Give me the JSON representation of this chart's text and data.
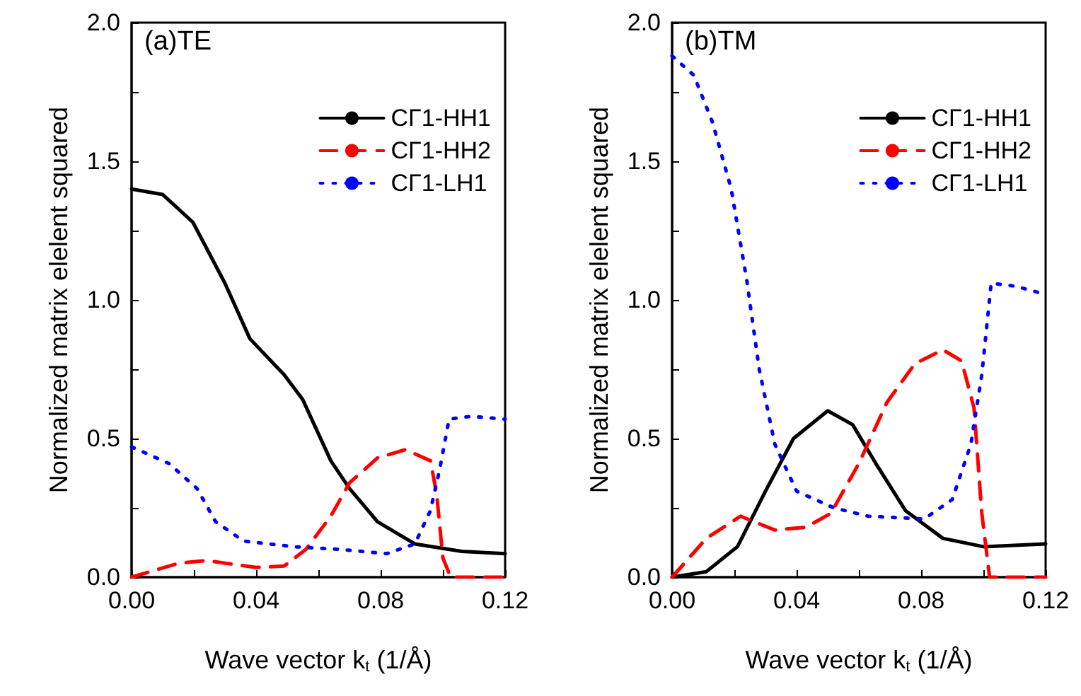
{
  "chart_data": [
    {
      "type": "line",
      "annotations": [
        "(a)TE"
      ],
      "xlabel": "Wave vector k$_{t}$ (1/Å)",
      "ylabel": "Normalized matrix elelent squared",
      "xlim": [
        0,
        0.12
      ],
      "xticks": [
        {
          "value": 0,
          "label": "0.00"
        },
        {
          "value": 0.02,
          "label": null
        },
        {
          "value": 0.04,
          "label": "0.04"
        },
        {
          "value": 0.06,
          "label": null
        },
        {
          "value": 0.08,
          "label": "0.08"
        },
        {
          "value": 0.1,
          "label": null
        },
        {
          "value": 0.12,
          "label": "0.12"
        }
      ],
      "ylim": [
        0,
        2
      ],
      "yticks": [
        {
          "value": 0,
          "label": "0.0"
        },
        {
          "value": 0.25,
          "label": null
        },
        {
          "value": 0.5,
          "label": "0.5"
        },
        {
          "value": 0.75,
          "label": null
        },
        {
          "value": 1,
          "label": "1.0"
        },
        {
          "value": 1.25,
          "label": null
        },
        {
          "value": 1.5,
          "label": "1.5"
        },
        {
          "value": 1.75,
          "label": null
        },
        {
          "value": 2,
          "label": "2.0"
        }
      ],
      "legend": "top right",
      "grid": false,
      "marker": "none",
      "series": [
        {
          "name": "CΓ1-HH1",
          "color": "#000000",
          "line_style": "solid",
          "x": [
            0,
            0.01,
            0.0197,
            0.03,
            0.038,
            0.049,
            0.055,
            0.064,
            0.07,
            0.079,
            0.091,
            0.106,
            0.12
          ],
          "values": [
            1.4,
            1.38,
            1.28,
            1.06,
            0.86,
            0.73,
            0.64,
            0.42,
            0.32,
            0.2,
            0.12,
            0.093,
            0.085
          ]
        },
        {
          "name": "CΓ1-HH2",
          "color": "#ff0000",
          "line_style": "dashed",
          "x": [
            0,
            0.015,
            0.024,
            0.04,
            0.049,
            0.056,
            0.064,
            0.07,
            0.079,
            0.088,
            0.096,
            0.098,
            0.1,
            0.1025,
            0.12
          ],
          "values": [
            0,
            0.05,
            0.06,
            0.035,
            0.04,
            0.1,
            0.22,
            0.34,
            0.43,
            0.46,
            0.42,
            0.3,
            0.07,
            0,
            0
          ]
        },
        {
          "name": "CΓ1-LH1",
          "color": "#0000ff",
          "line_style": "dotted",
          "x": [
            0,
            0.012,
            0.021,
            0.027,
            0.036,
            0.052,
            0.067,
            0.082,
            0.091,
            0.096,
            0.099,
            0.102,
            0.109,
            0.12
          ],
          "values": [
            0.47,
            0.41,
            0.32,
            0.2,
            0.13,
            0.11,
            0.1,
            0.085,
            0.12,
            0.24,
            0.39,
            0.57,
            0.58,
            0.57
          ]
        }
      ]
    },
    {
      "type": "line",
      "annotations": [
        "(b)TM"
      ],
      "xlabel": "Wave vector k$_{t}$ (1/Å)",
      "ylabel": "Normalized matrix elelent squared",
      "xlim": [
        0,
        0.12
      ],
      "xticks": [
        {
          "value": 0,
          "label": "0.00"
        },
        {
          "value": 0.02,
          "label": null
        },
        {
          "value": 0.04,
          "label": "0.04"
        },
        {
          "value": 0.06,
          "label": null
        },
        {
          "value": 0.08,
          "label": "0.08"
        },
        {
          "value": 0.1,
          "label": null
        },
        {
          "value": 0.12,
          "label": "0.12"
        }
      ],
      "ylim": [
        0,
        2
      ],
      "yticks": [
        {
          "value": 0,
          "label": "0.0"
        },
        {
          "value": 0.25,
          "label": null
        },
        {
          "value": 0.5,
          "label": "0.5"
        },
        {
          "value": 0.75,
          "label": null
        },
        {
          "value": 1,
          "label": "1.0"
        },
        {
          "value": 1.25,
          "label": null
        },
        {
          "value": 1.5,
          "label": "1.5"
        },
        {
          "value": 1.75,
          "label": null
        },
        {
          "value": 2,
          "label": "2.0"
        }
      ],
      "legend": "top right",
      "grid": false,
      "marker": "none",
      "series": [
        {
          "name": "CΓ1-HH1",
          "color": "#000000",
          "line_style": "solid",
          "x": [
            0,
            0.011,
            0.021,
            0.03,
            0.039,
            0.05,
            0.058,
            0.066,
            0.075,
            0.087,
            0.1,
            0.12
          ],
          "values": [
            0,
            0.02,
            0.11,
            0.31,
            0.5,
            0.6,
            0.55,
            0.4,
            0.24,
            0.14,
            0.11,
            0.12
          ]
        },
        {
          "name": "CΓ1-HH2",
          "color": "#ff0000",
          "line_style": "dashed",
          "x": [
            0,
            0.011,
            0.022,
            0.033,
            0.043,
            0.051,
            0.06,
            0.069,
            0.078,
            0.087,
            0.093,
            0.097,
            0.0995,
            0.102,
            0.12
          ],
          "values": [
            0,
            0.14,
            0.22,
            0.17,
            0.18,
            0.23,
            0.41,
            0.63,
            0.77,
            0.82,
            0.78,
            0.61,
            0.23,
            0,
            0
          ]
        },
        {
          "name": "CΓ1-LH1",
          "color": "#0000ff",
          "line_style": "dotted",
          "x": [
            0,
            0.007,
            0.013,
            0.019,
            0.024,
            0.028,
            0.033,
            0.04,
            0.052,
            0.063,
            0.081,
            0.09,
            0.096,
            0.0995,
            0.1025,
            0.11,
            0.12
          ],
          "values": [
            1.88,
            1.81,
            1.64,
            1.4,
            1.07,
            0.75,
            0.48,
            0.31,
            0.25,
            0.22,
            0.21,
            0.28,
            0.48,
            0.73,
            1.06,
            1.05,
            1.02
          ]
        }
      ]
    }
  ]
}
